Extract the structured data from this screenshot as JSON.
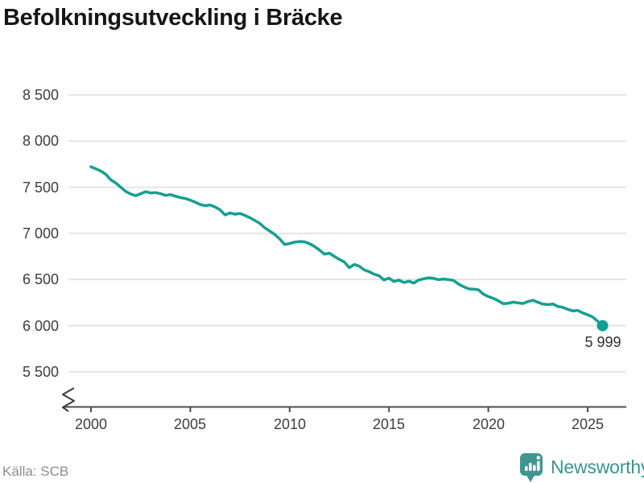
{
  "title": "Befolkningsutveckling i Bräcke",
  "source": "Källa: SCB",
  "branding": {
    "name": "Newsworthy",
    "icon": "newsworthy-bubble-chart-icon"
  },
  "colors": {
    "line": "#14a090",
    "grid": "#e2e2e2",
    "axis": "#4d4d4d",
    "tick_label": "#3d3d3d",
    "title": "#161616",
    "end_label": "#2e2e2e",
    "source_label": "#8e8e8e",
    "brand": "#3a948e",
    "brand_icon": "#3e968f",
    "background": "#ffffff"
  },
  "chart_data": {
    "type": "line",
    "title": "Befolkningsutveckling i Bräcke",
    "series_name": "Befolkning i Bräcke",
    "x_start": 2000.0,
    "x_step": 0.25,
    "x_unit": "year (quarterly)",
    "values": [
      7722,
      7700,
      7675,
      7640,
      7580,
      7545,
      7500,
      7455,
      7427,
      7408,
      7430,
      7452,
      7438,
      7442,
      7430,
      7412,
      7420,
      7403,
      7388,
      7378,
      7360,
      7338,
      7312,
      7300,
      7308,
      7285,
      7255,
      7200,
      7222,
      7208,
      7216,
      7195,
      7170,
      7140,
      7108,
      7060,
      7025,
      6988,
      6940,
      6880,
      6890,
      6905,
      6912,
      6908,
      6888,
      6858,
      6820,
      6775,
      6785,
      6750,
      6718,
      6690,
      6628,
      6662,
      6645,
      6605,
      6585,
      6558,
      6540,
      6495,
      6515,
      6478,
      6494,
      6468,
      6482,
      6462,
      6495,
      6508,
      6518,
      6512,
      6498,
      6505,
      6498,
      6490,
      6450,
      6422,
      6400,
      6394,
      6388,
      6342,
      6315,
      6296,
      6270,
      6238,
      6242,
      6255,
      6246,
      6240,
      6262,
      6275,
      6253,
      6233,
      6228,
      6235,
      6208,
      6198,
      6176,
      6160,
      6165,
      6138,
      6118,
      6094,
      6049,
      5999
    ],
    "end_point": {
      "x": 2025.75,
      "value": 5999,
      "label": "5 999"
    },
    "x_ticks": [
      2000,
      2005,
      2010,
      2015,
      2020,
      2025
    ],
    "y_ticks": [
      8500,
      8000,
      7500,
      7000,
      6500,
      6000,
      5500
    ],
    "y_tick_labels": [
      "8 500",
      "8 000",
      "7 500",
      "7 000",
      "6 500",
      "6 000",
      "5 500"
    ],
    "ylim": [
      5500,
      8500
    ],
    "axis_break": true,
    "grid": "horizontal",
    "legend": "none"
  }
}
